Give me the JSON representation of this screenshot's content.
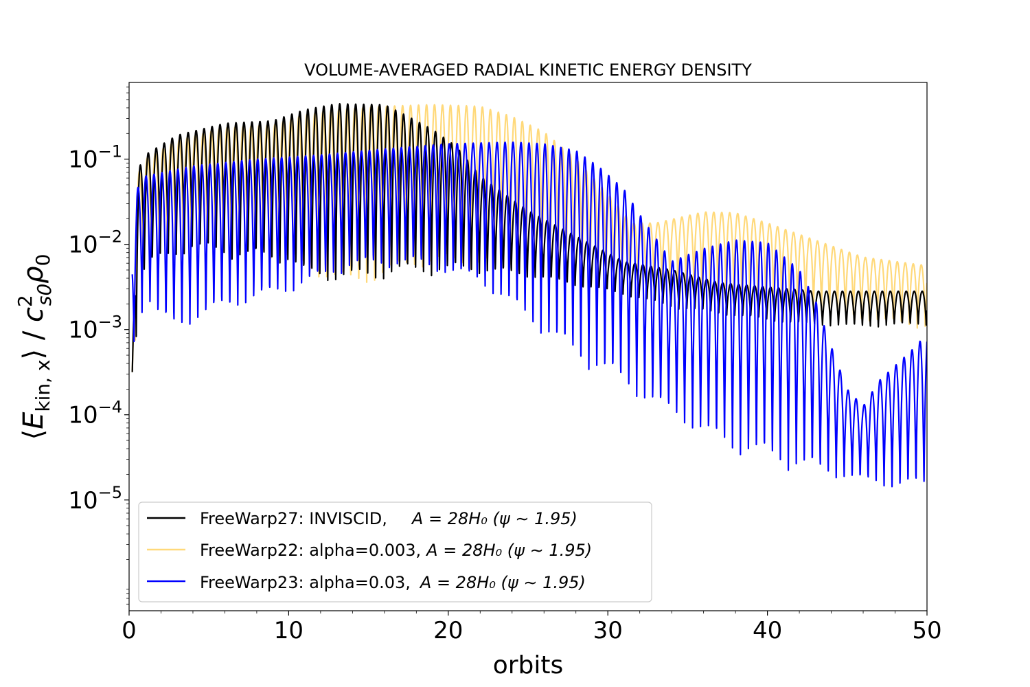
{
  "chart_data": {
    "type": "line",
    "title": "VOLUME-AVERAGED RADIAL KINETIC ENERGY DENSITY",
    "xlabel": "orbits",
    "ylabel": "⟨E_kin,x⟩ / c_s0² ρ0",
    "ylabel_parts": {
      "open": "⟨",
      "E": "E",
      "E_sub": "kin, x",
      "close": "⟩ / ",
      "c": "c",
      "c_sup": "2",
      "c_sub": "s0",
      "rho": "ρ",
      "rho_sub": "0"
    },
    "scale_y": "log",
    "xlim": [
      0,
      50
    ],
    "ylim_log10": [
      -6.3,
      -0.1
    ],
    "x_ticks": [
      "0",
      "10",
      "20",
      "30",
      "40",
      "50"
    ],
    "y_ticks": [
      {
        "base": "10",
        "exp": "−1",
        "log10": -1
      },
      {
        "base": "10",
        "exp": "−2",
        "log10": -2
      },
      {
        "base": "10",
        "exp": "−3",
        "log10": -3
      },
      {
        "base": "10",
        "exp": "−4",
        "log10": -4
      },
      {
        "base": "10",
        "exp": "−5",
        "log10": -5
      }
    ],
    "oscillation_period_orbits": 0.5,
    "legend_position": "lower-left",
    "series": [
      {
        "name": "FreeWarp27",
        "label_text": "FreeWarp27: INVISCID,",
        "label_math": "A = 28H₀ (ψ ∼ 1.95)",
        "color": "#000000",
        "envelope_max": [
          [
            0.2,
            -3.5
          ],
          [
            0.5,
            -1.15
          ],
          [
            1,
            -0.95
          ],
          [
            3,
            -0.72
          ],
          [
            6,
            -0.58
          ],
          [
            9,
            -0.55
          ],
          [
            11,
            -0.42
          ],
          [
            13,
            -0.35
          ],
          [
            16,
            -0.36
          ],
          [
            17.5,
            -0.5
          ],
          [
            19,
            -0.65
          ],
          [
            20.5,
            -0.85
          ],
          [
            22,
            -1.2
          ],
          [
            25,
            -1.6
          ],
          [
            28,
            -1.9
          ],
          [
            31,
            -2.2
          ],
          [
            34,
            -2.3
          ],
          [
            37,
            -2.45
          ],
          [
            40,
            -2.5
          ],
          [
            43,
            -2.55
          ],
          [
            46,
            -2.55
          ],
          [
            50,
            -2.55
          ]
        ],
        "envelope_min": [
          [
            0.2,
            -3.5
          ],
          [
            1,
            -2.3
          ],
          [
            4,
            -2.1
          ],
          [
            7,
            -2.2
          ],
          [
            10,
            -2.25
          ],
          [
            11,
            -2.45
          ],
          [
            14,
            -2.5
          ],
          [
            18,
            -2.4
          ],
          [
            22,
            -2.35
          ],
          [
            25,
            -2.4
          ],
          [
            28,
            -2.5
          ],
          [
            31,
            -2.6
          ],
          [
            34,
            -2.75
          ],
          [
            38,
            -2.85
          ],
          [
            42,
            -2.95
          ],
          [
            46,
            -2.98
          ],
          [
            50,
            -2.95
          ]
        ]
      },
      {
        "name": "FreeWarp22",
        "label_text": "FreeWarp22: alpha=0.003,",
        "label_math": "A = 28H₀ (ψ ∼ 1.95)",
        "color": "#ffd97a",
        "envelope_max": [
          [
            0.2,
            -3.5
          ],
          [
            0.5,
            -1.2
          ],
          [
            1,
            -1.0
          ],
          [
            3,
            -0.78
          ],
          [
            6,
            -0.63
          ],
          [
            9,
            -0.6
          ],
          [
            11,
            -0.48
          ],
          [
            13,
            -0.42
          ],
          [
            16,
            -0.38
          ],
          [
            19,
            -0.36
          ],
          [
            22,
            -0.38
          ],
          [
            24,
            -0.5
          ],
          [
            26,
            -0.68
          ],
          [
            28,
            -1.0
          ],
          [
            30,
            -1.4
          ],
          [
            31.5,
            -1.75
          ],
          [
            33,
            -1.75
          ],
          [
            36,
            -1.62
          ],
          [
            38,
            -1.63
          ],
          [
            40,
            -1.75
          ],
          [
            43,
            -1.95
          ],
          [
            46,
            -2.15
          ],
          [
            50,
            -2.25
          ]
        ],
        "envelope_min": [
          [
            0.2,
            -3.5
          ],
          [
            1,
            -2.2
          ],
          [
            4,
            -2.0
          ],
          [
            8,
            -2.1
          ],
          [
            10,
            -2.25
          ],
          [
            11,
            -2.35
          ],
          [
            13,
            -2.5
          ],
          [
            14,
            -2.55
          ],
          [
            16,
            -2.45
          ],
          [
            18,
            -2.3
          ],
          [
            22,
            -2.3
          ],
          [
            26,
            -2.35
          ],
          [
            30,
            -2.4
          ],
          [
            34,
            -2.5
          ],
          [
            38,
            -2.6
          ],
          [
            42,
            -2.75
          ],
          [
            46,
            -2.9
          ],
          [
            50,
            -3.0
          ]
        ]
      },
      {
        "name": "FreeWarp23",
        "label_text": "FreeWarp23: alpha=0.03,",
        "label_math": "A = 28H₀ (ψ ∼ 1.95)",
        "color": "#0000ff",
        "envelope_max": [
          [
            0.2,
            -2.0
          ],
          [
            0.5,
            -1.35
          ],
          [
            1,
            -1.2
          ],
          [
            4,
            -1.08
          ],
          [
            8,
            -1.0
          ],
          [
            12,
            -0.95
          ],
          [
            16,
            -0.88
          ],
          [
            20,
            -0.82
          ],
          [
            24,
            -0.8
          ],
          [
            26,
            -0.82
          ],
          [
            28,
            -0.9
          ],
          [
            29.5,
            -1.1
          ],
          [
            31,
            -1.35
          ],
          [
            32,
            -1.65
          ],
          [
            34,
            -2.2
          ],
          [
            36,
            -2.05
          ],
          [
            38,
            -1.95
          ],
          [
            40,
            -1.98
          ],
          [
            42,
            -2.3
          ],
          [
            43,
            -2.65
          ],
          [
            44,
            -3.2
          ],
          [
            45,
            -3.7
          ],
          [
            46,
            -3.9
          ],
          [
            47,
            -3.6
          ],
          [
            49,
            -3.25
          ],
          [
            50,
            -3.05
          ]
        ],
        "envelope_min": [
          [
            0.2,
            -3.3
          ],
          [
            1,
            -2.65
          ],
          [
            2,
            -2.95
          ],
          [
            3,
            -3.05
          ],
          [
            4,
            -2.95
          ],
          [
            6,
            -2.8
          ],
          [
            8,
            -2.7
          ],
          [
            10,
            -2.6
          ],
          [
            14,
            -2.3
          ],
          [
            18,
            -2.28
          ],
          [
            22,
            -2.5
          ],
          [
            26,
            -3.1
          ],
          [
            28,
            -3.4
          ],
          [
            30,
            -3.6
          ],
          [
            32,
            -3.85
          ],
          [
            34,
            -4.05
          ],
          [
            36,
            -4.3
          ],
          [
            38,
            -4.5
          ],
          [
            40,
            -4.6
          ],
          [
            42,
            -4.7
          ],
          [
            44,
            -4.75
          ],
          [
            46,
            -4.8
          ],
          [
            48,
            -4.9
          ],
          [
            50,
            -4.9
          ]
        ]
      }
    ]
  }
}
